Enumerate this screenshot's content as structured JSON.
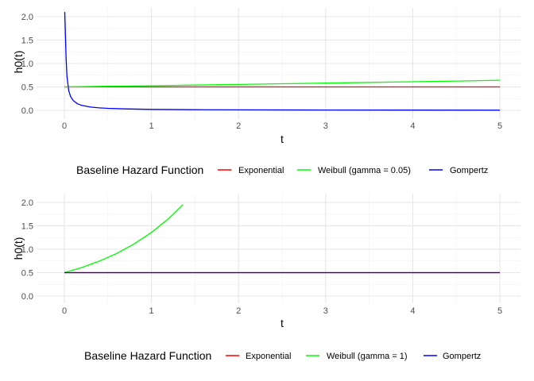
{
  "chart_data": [
    {
      "type": "line",
      "xlabel": "t",
      "ylabel": "h0(t)",
      "xlim": [
        0,
        5
      ],
      "ylim": [
        0,
        2.1
      ],
      "xticks": [
        "0",
        "1",
        "2",
        "3",
        "4",
        "5"
      ],
      "yticks": [
        "0.0",
        "0.5",
        "1.0",
        "1.5",
        "2.0"
      ],
      "grid": true,
      "legend_position": "bottom",
      "legend_title": "Baseline Hazard Function",
      "series": [
        {
          "name": "Exponential",
          "color": "#ff0000",
          "x": [
            0,
            5
          ],
          "y": [
            0.5,
            0.5
          ]
        },
        {
          "name": "Weibull (gamma = 0.05)",
          "color": "#00ff00",
          "x": [
            0,
            0.5,
            1,
            1.5,
            2,
            2.5,
            3,
            3.5,
            4,
            4.5,
            5
          ],
          "y": [
            0.5,
            0.513,
            0.526,
            0.539,
            0.553,
            0.567,
            0.581,
            0.596,
            0.611,
            0.626,
            0.642
          ]
        },
        {
          "name": "Gompertz",
          "color": "#0000ff",
          "x": [
            0.005,
            0.01,
            0.02,
            0.03,
            0.05,
            0.07,
            0.1,
            0.15,
            0.2,
            0.3,
            0.4,
            0.5,
            0.7,
            1,
            1.5,
            2,
            3,
            4,
            5
          ],
          "y": [
            2.1,
            1.75,
            1.1,
            0.72,
            0.42,
            0.3,
            0.21,
            0.14,
            0.105,
            0.07,
            0.053,
            0.042,
            0.03,
            0.021,
            0.014,
            0.011,
            0.007,
            0.005,
            0.004
          ]
        }
      ]
    },
    {
      "type": "line",
      "xlabel": "t",
      "ylabel": "h0(t)",
      "xlim": [
        0,
        5
      ],
      "ylim": [
        0,
        2.0
      ],
      "xticks": [
        "0",
        "1",
        "2",
        "3",
        "4",
        "5"
      ],
      "yticks": [
        "0.0",
        "0.5",
        "1.0",
        "1.5",
        "2.0"
      ],
      "grid": true,
      "legend_position": "bottom",
      "legend_title": "Baseline Hazard Function",
      "series": [
        {
          "name": "Exponential",
          "color": "#ff0000",
          "x": [
            0,
            5
          ],
          "y": [
            0.5,
            0.5
          ]
        },
        {
          "name": "Weibull (gamma = 1)",
          "color": "#00ff00",
          "x": [
            0,
            0.2,
            0.4,
            0.6,
            0.8,
            1.0,
            1.2,
            1.36
          ],
          "y": [
            0.5,
            0.61,
            0.746,
            0.911,
            1.113,
            1.359,
            1.66,
            1.95
          ]
        },
        {
          "name": "Gompertz",
          "color": "#0000ff",
          "x": [
            0,
            5
          ],
          "y": [
            0.5,
            0.5
          ]
        }
      ]
    }
  ]
}
